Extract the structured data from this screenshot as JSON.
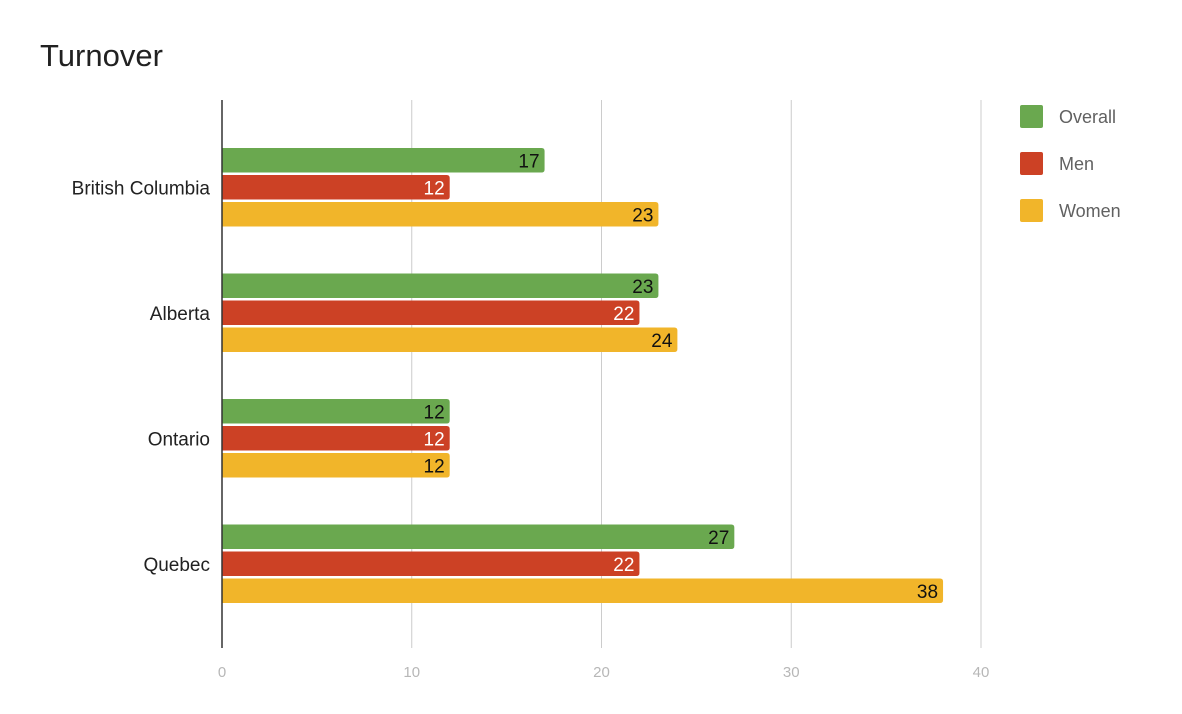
{
  "chart_data": {
    "type": "bar",
    "orientation": "horizontal",
    "title": "Turnover",
    "categories": [
      "British Columbia",
      "Alberta",
      "Ontario",
      "Quebec"
    ],
    "series": [
      {
        "name": "Overall",
        "color": "#6aa84f",
        "label_color": "#111111",
        "values": [
          17,
          23,
          12,
          27
        ]
      },
      {
        "name": "Men",
        "color": "#cc4125",
        "label_color": "#ffffff",
        "values": [
          12,
          22,
          12,
          22
        ]
      },
      {
        "name": "Women",
        "color": "#f1b52a",
        "label_color": "#111111",
        "values": [
          23,
          24,
          12,
          38
        ]
      }
    ],
    "xlim": [
      0,
      40
    ],
    "xticks": [
      0,
      10,
      20,
      30,
      40
    ],
    "grid": true,
    "legend": "right",
    "data_labels": true
  }
}
